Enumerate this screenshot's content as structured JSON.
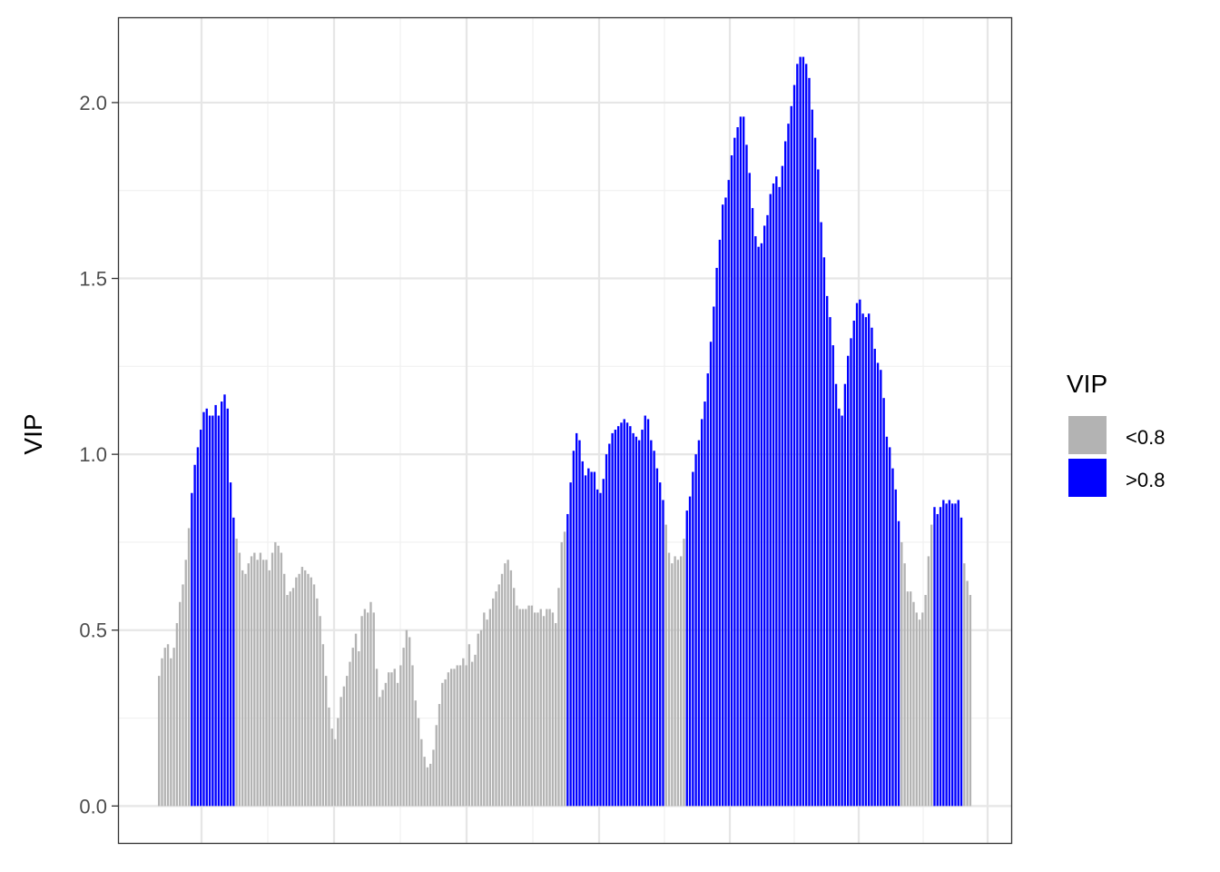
{
  "chart_data": {
    "type": "bar",
    "ylabel": "VIP",
    "xlabel": "",
    "ylim": [
      -0.105,
      2.24
    ],
    "yticks": [
      0.0,
      0.5,
      1.0,
      1.5,
      2.0
    ],
    "ytick_labels": [
      "0.0",
      "0.5",
      "1.0",
      "1.5",
      "2.0"
    ],
    "grid": true,
    "threshold": 0.8,
    "legend": {
      "title": "VIP",
      "position": "right",
      "entries": [
        {
          "label": "<0.8",
          "color": "#b3b3b3"
        },
        {
          "label": ">0.8",
          "color": "#0000ff"
        }
      ]
    },
    "values": [
      0.37,
      0.42,
      0.45,
      0.46,
      0.42,
      0.45,
      0.52,
      0.58,
      0.63,
      0.7,
      0.79,
      0.89,
      0.97,
      1.02,
      1.07,
      1.12,
      1.13,
      1.11,
      1.11,
      1.14,
      1.11,
      1.15,
      1.17,
      1.13,
      0.92,
      0.82,
      0.76,
      0.72,
      0.67,
      0.66,
      0.69,
      0.71,
      0.72,
      0.7,
      0.72,
      0.7,
      0.7,
      0.67,
      0.72,
      0.75,
      0.74,
      0.72,
      0.66,
      0.6,
      0.61,
      0.62,
      0.65,
      0.66,
      0.68,
      0.67,
      0.66,
      0.65,
      0.63,
      0.59,
      0.54,
      0.46,
      0.37,
      0.28,
      0.22,
      0.19,
      0.25,
      0.31,
      0.34,
      0.37,
      0.41,
      0.45,
      0.49,
      0.44,
      0.54,
      0.56,
      0.55,
      0.58,
      0.55,
      0.39,
      0.31,
      0.33,
      0.35,
      0.38,
      0.38,
      0.39,
      0.35,
      0.4,
      0.45,
      0.5,
      0.48,
      0.4,
      0.3,
      0.25,
      0.19,
      0.14,
      0.11,
      0.12,
      0.16,
      0.23,
      0.29,
      0.35,
      0.36,
      0.38,
      0.39,
      0.39,
      0.4,
      0.4,
      0.42,
      0.4,
      0.46,
      0.41,
      0.43,
      0.49,
      0.5,
      0.55,
      0.53,
      0.56,
      0.59,
      0.61,
      0.63,
      0.66,
      0.69,
      0.7,
      0.67,
      0.62,
      0.57,
      0.56,
      0.56,
      0.56,
      0.57,
      0.57,
      0.55,
      0.55,
      0.56,
      0.54,
      0.56,
      0.56,
      0.55,
      0.52,
      0.62,
      0.75,
      0.78,
      0.83,
      0.92,
      1.01,
      1.06,
      1.04,
      0.98,
      0.94,
      0.96,
      0.95,
      0.95,
      0.9,
      0.89,
      0.93,
      1.0,
      1.03,
      1.06,
      1.07,
      1.08,
      1.09,
      1.1,
      1.09,
      1.08,
      1.06,
      1.05,
      1.04,
      1.07,
      1.11,
      1.1,
      1.04,
      1.01,
      0.96,
      0.92,
      0.87,
      0.8,
      0.72,
      0.69,
      0.71,
      0.7,
      0.71,
      0.76,
      0.84,
      0.88,
      0.95,
      1.0,
      1.04,
      1.1,
      1.15,
      1.23,
      1.32,
      1.42,
      1.53,
      1.61,
      1.71,
      1.73,
      1.78,
      1.85,
      1.9,
      1.93,
      1.96,
      1.96,
      1.88,
      1.8,
      1.7,
      1.62,
      1.59,
      1.6,
      1.65,
      1.68,
      1.74,
      1.77,
      1.79,
      1.76,
      1.82,
      1.89,
      1.94,
      1.99,
      2.05,
      2.11,
      2.13,
      2.13,
      2.11,
      2.07,
      1.98,
      1.9,
      1.81,
      1.66,
      1.56,
      1.45,
      1.39,
      1.31,
      1.2,
      1.13,
      1.11,
      1.2,
      1.28,
      1.33,
      1.38,
      1.43,
      1.44,
      1.4,
      1.39,
      1.4,
      1.36,
      1.3,
      1.26,
      1.24,
      1.16,
      1.05,
      1.02,
      0.96,
      0.9,
      0.81,
      0.75,
      0.69,
      0.61,
      0.61,
      0.58,
      0.55,
      0.53,
      0.55,
      0.6,
      0.71,
      0.8,
      0.85,
      0.83,
      0.85,
      0.87,
      0.86,
      0.87,
      0.86,
      0.86,
      0.87,
      0.82,
      0.69,
      0.64,
      0.6
    ]
  }
}
